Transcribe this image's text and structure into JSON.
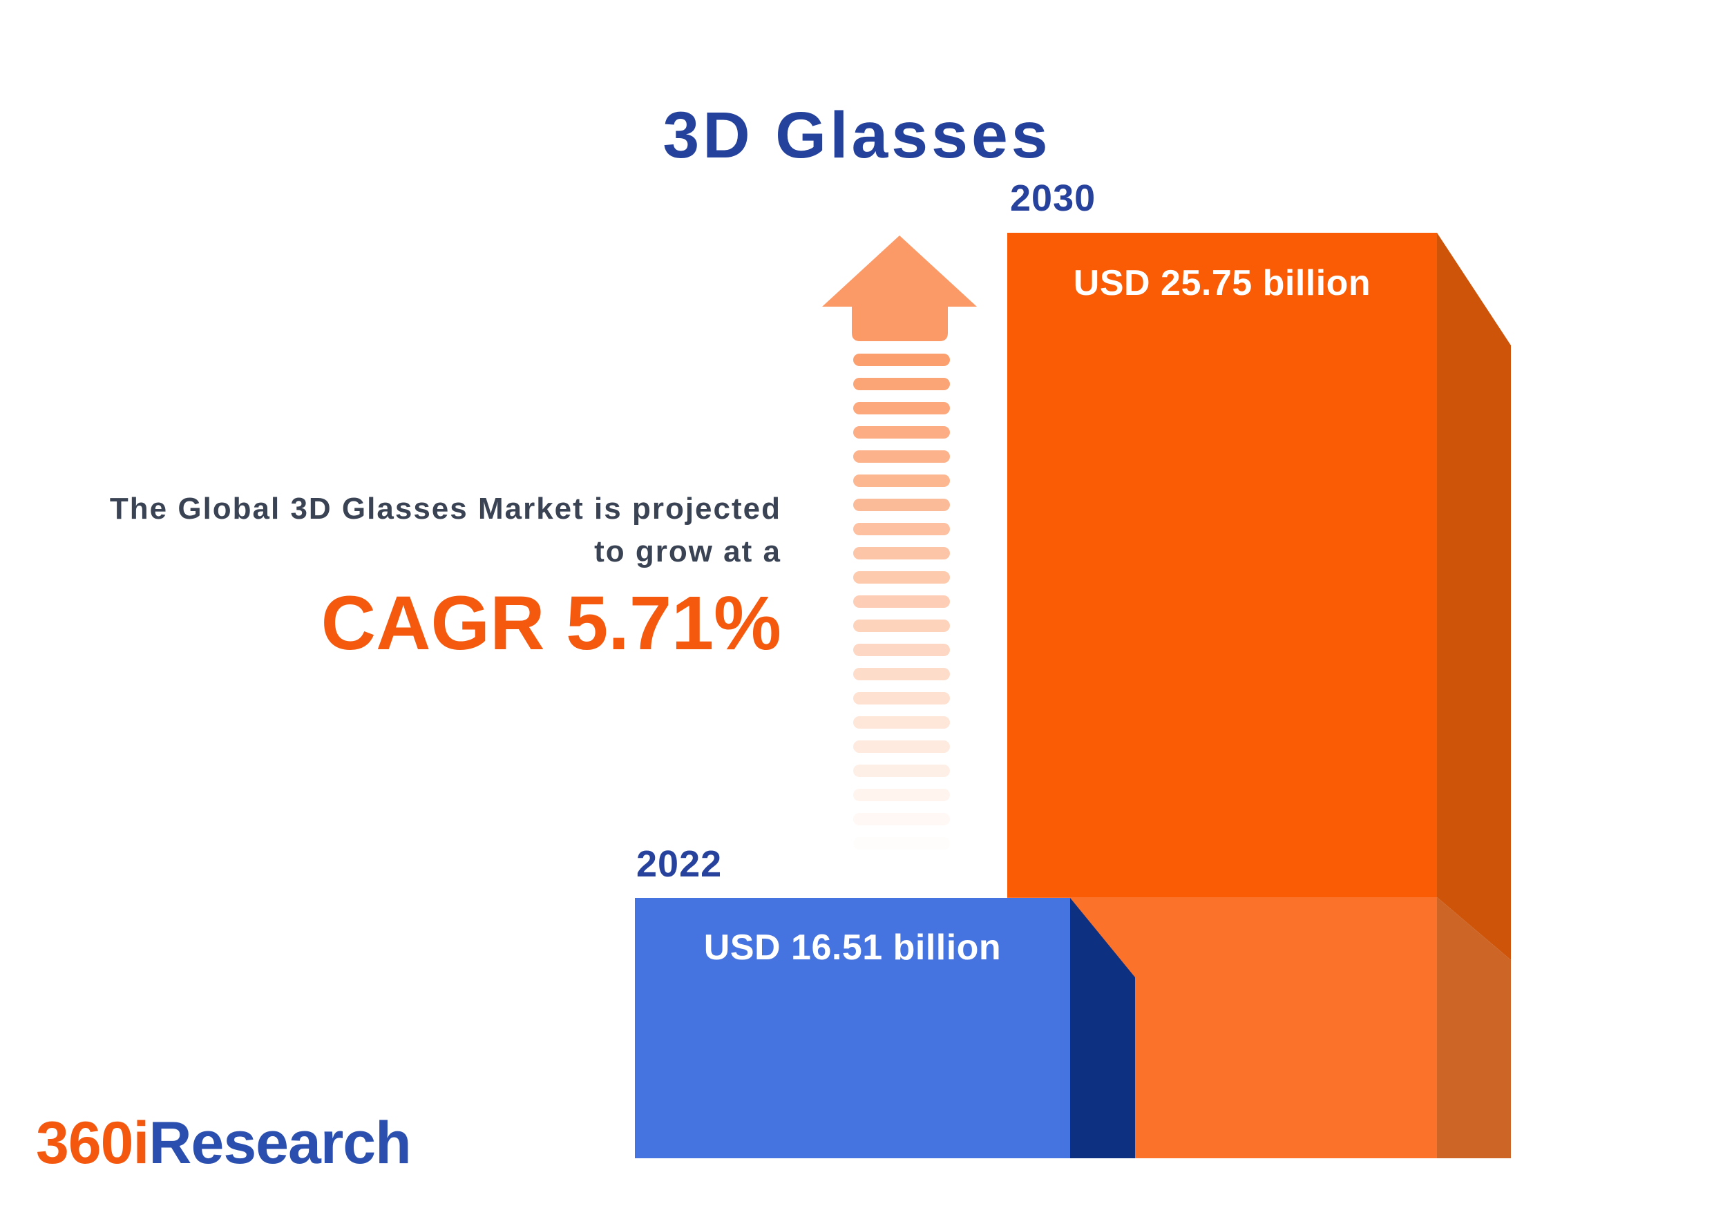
{
  "page": {
    "title": "3D Glasses",
    "title_color": "#24419b",
    "background_color": "#ffffff"
  },
  "tagline": {
    "line1": "The Global 3D Glasses Market is projected",
    "line2": "to grow at a",
    "cagr": "CAGR 5.71%",
    "text_color": "#3a4353",
    "cagr_color": "#f4590e"
  },
  "chart_data": {
    "type": "bar",
    "title": "3D Glasses",
    "orientation": "vertical",
    "unit": "USD billion",
    "categories": [
      "2022",
      "2030"
    ],
    "values": [
      16.51,
      25.75
    ],
    "value_labels": [
      "USD 16.51 billion",
      "USD 25.75 billion"
    ],
    "cagr_percent": 5.71,
    "bar_front_colors": [
      "#4573df",
      "#fa5c05"
    ],
    "style": "3d-extruded-infographic",
    "gridlines": false,
    "legend": "none"
  },
  "bars": {
    "year_label_color": "#26429d",
    "value_label_color": "#ffffff",
    "year2022": {
      "year_label": "2022",
      "value_label": "USD 16.51 billion",
      "front": "#4573df",
      "side": "#0e3080"
    },
    "year2030": {
      "year_label": "2030",
      "value_label": "USD 25.75 billion",
      "front_upper": "#fa5c05",
      "front_lower": "#fb722b",
      "side_upper": "#cd5409",
      "side_lower": "#cd6527"
    }
  },
  "arrow": {
    "color": "#fb9a66"
  },
  "logo": {
    "part1": "360i",
    "part2": "Research",
    "part1_color": "#f4580e",
    "part2_color": "#2a4fae"
  }
}
